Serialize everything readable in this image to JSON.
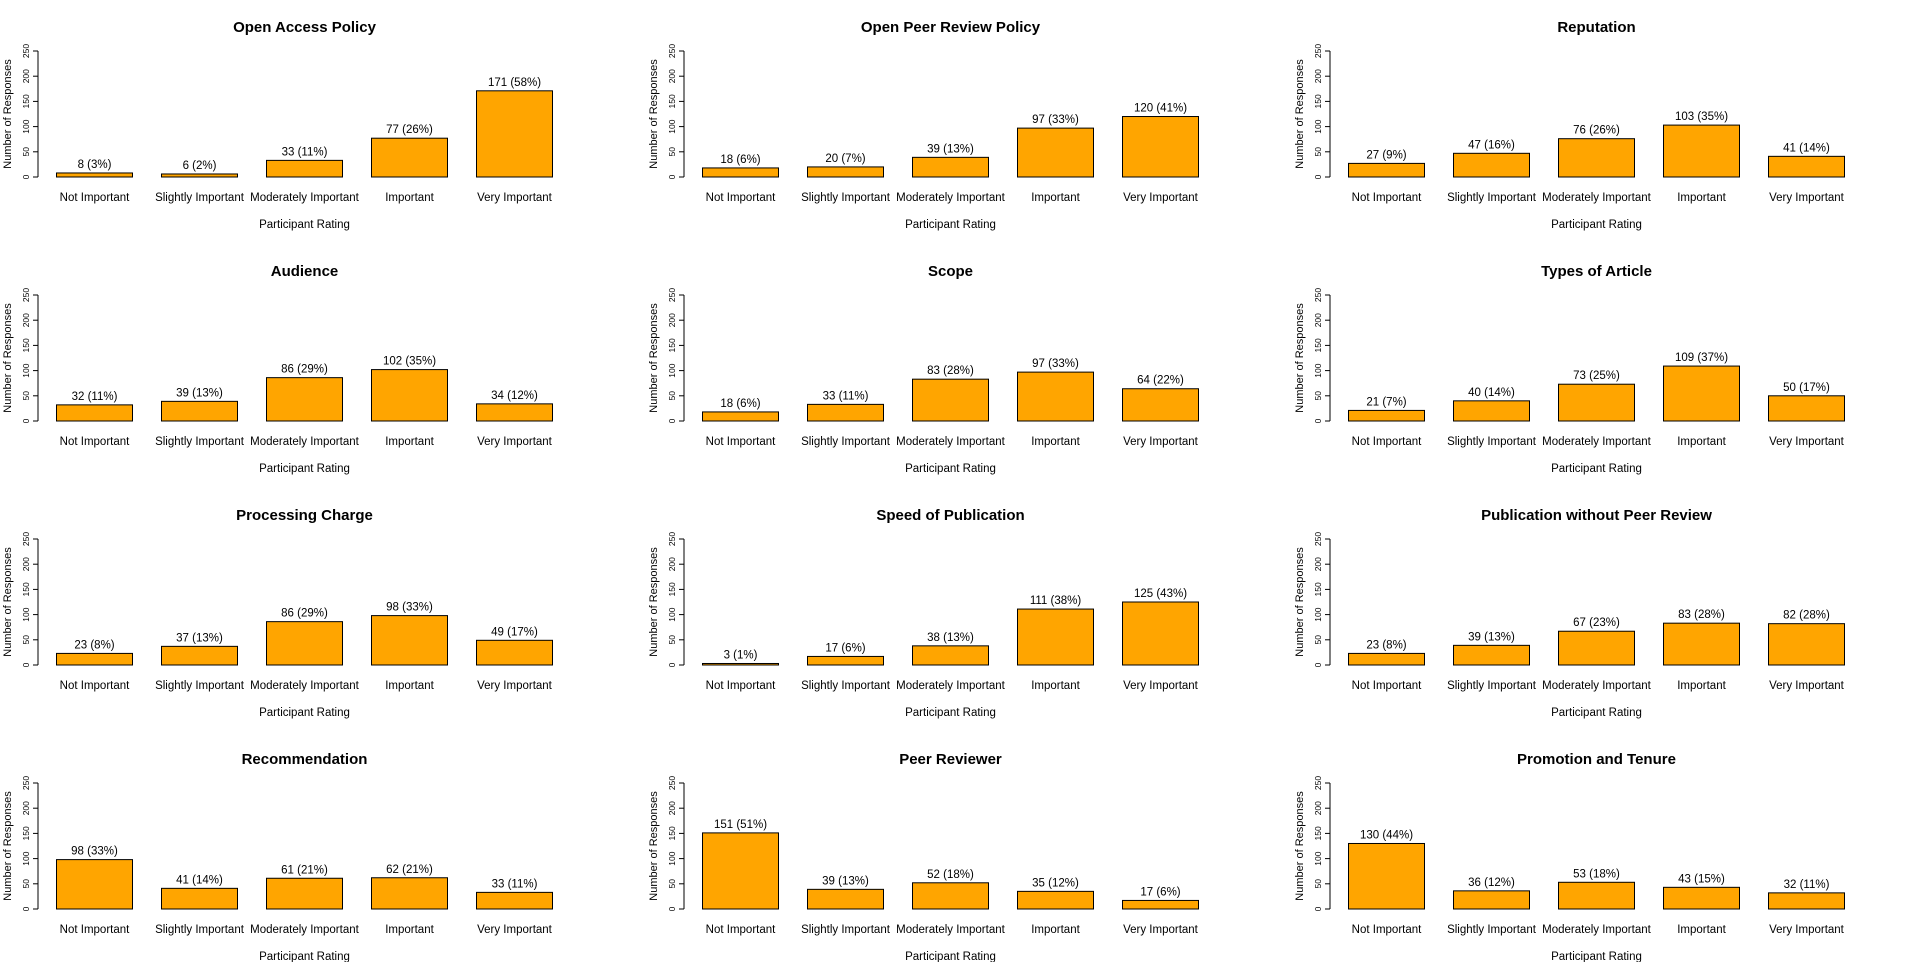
{
  "bar_color": "#FFA500",
  "chart_data": [
    {
      "type": "bar",
      "title": "Open Access Policy",
      "categories": [
        "Not Important",
        "Slightly Important",
        "Moderately Important",
        "Important",
        "Very Important"
      ],
      "values": [
        8,
        6,
        33,
        77,
        171
      ],
      "data_labels": [
        "8 (3%)",
        "6 (2%)",
        "33 (11%)",
        "77 (26%)",
        "171 (58%)"
      ],
      "xlabel": "Participant Rating",
      "ylabel": "Number of Responses",
      "ylim": [
        0,
        250
      ],
      "yticks": [
        "0",
        "50",
        "100",
        "150",
        "200",
        "250"
      ]
    },
    {
      "type": "bar",
      "title": "Open Peer Review Policy",
      "categories": [
        "Not Important",
        "Slightly Important",
        "Moderately Important",
        "Important",
        "Very Important"
      ],
      "values": [
        18,
        20,
        39,
        97,
        120
      ],
      "data_labels": [
        "18 (6%)",
        "20 (7%)",
        "39 (13%)",
        "97 (33%)",
        "120 (41%)"
      ],
      "xlabel": "Participant Rating",
      "ylabel": "Number of Responses",
      "ylim": [
        0,
        250
      ],
      "yticks": [
        "0",
        "50",
        "100",
        "150",
        "200",
        "250"
      ]
    },
    {
      "type": "bar",
      "title": "Reputation",
      "categories": [
        "Not Important",
        "Slightly Important",
        "Moderately Important",
        "Important",
        "Very Important"
      ],
      "values": [
        27,
        47,
        76,
        103,
        41
      ],
      "data_labels": [
        "27 (9%)",
        "47 (16%)",
        "76 (26%)",
        "103 (35%)",
        "41 (14%)"
      ],
      "xlabel": "Participant Rating",
      "ylabel": "Number of Responses",
      "ylim": [
        0,
        250
      ],
      "yticks": [
        "0",
        "50",
        "100",
        "150",
        "200",
        "250"
      ]
    },
    {
      "type": "bar",
      "title": "Audience",
      "categories": [
        "Not Important",
        "Slightly Important",
        "Moderately Important",
        "Important",
        "Very Important"
      ],
      "values": [
        32,
        39,
        86,
        102,
        34
      ],
      "data_labels": [
        "32 (11%)",
        "39 (13%)",
        "86 (29%)",
        "102 (35%)",
        "34 (12%)"
      ],
      "xlabel": "Participant Rating",
      "ylabel": "Number of Responses",
      "ylim": [
        0,
        250
      ],
      "yticks": [
        "0",
        "50",
        "100",
        "150",
        "200",
        "250"
      ]
    },
    {
      "type": "bar",
      "title": "Scope",
      "categories": [
        "Not Important",
        "Slightly Important",
        "Moderately Important",
        "Important",
        "Very Important"
      ],
      "values": [
        18,
        33,
        83,
        97,
        64
      ],
      "data_labels": [
        "18 (6%)",
        "33 (11%)",
        "83 (28%)",
        "97 (33%)",
        "64 (22%)"
      ],
      "xlabel": "Participant Rating",
      "ylabel": "Number of Responses",
      "ylim": [
        0,
        250
      ],
      "yticks": [
        "0",
        "50",
        "100",
        "150",
        "200",
        "250"
      ]
    },
    {
      "type": "bar",
      "title": "Types of Article",
      "categories": [
        "Not Important",
        "Slightly Important",
        "Moderately Important",
        "Important",
        "Very Important"
      ],
      "values": [
        21,
        40,
        73,
        109,
        50
      ],
      "data_labels": [
        "21 (7%)",
        "40 (14%)",
        "73 (25%)",
        "109 (37%)",
        "50 (17%)"
      ],
      "xlabel": "Participant Rating",
      "ylabel": "Number of Responses",
      "ylim": [
        0,
        250
      ],
      "yticks": [
        "0",
        "50",
        "100",
        "150",
        "200",
        "250"
      ]
    },
    {
      "type": "bar",
      "title": "Processing Charge",
      "categories": [
        "Not Important",
        "Slightly Important",
        "Moderately Important",
        "Important",
        "Very Important"
      ],
      "values": [
        23,
        37,
        86,
        98,
        49
      ],
      "data_labels": [
        "23 (8%)",
        "37 (13%)",
        "86 (29%)",
        "98 (33%)",
        "49 (17%)"
      ],
      "xlabel": "Participant Rating",
      "ylabel": "Number of Responses",
      "ylim": [
        0,
        250
      ],
      "yticks": [
        "0",
        "50",
        "100",
        "150",
        "200",
        "250"
      ]
    },
    {
      "type": "bar",
      "title": "Speed of Publication",
      "categories": [
        "Not Important",
        "Slightly Important",
        "Moderately Important",
        "Important",
        "Very Important"
      ],
      "values": [
        3,
        17,
        38,
        111,
        125
      ],
      "data_labels": [
        "3 (1%)",
        "17 (6%)",
        "38 (13%)",
        "111 (38%)",
        "125 (43%)"
      ],
      "xlabel": "Participant Rating",
      "ylabel": "Number of Responses",
      "ylim": [
        0,
        250
      ],
      "yticks": [
        "0",
        "50",
        "100",
        "150",
        "200",
        "250"
      ]
    },
    {
      "type": "bar",
      "title": "Publication without Peer Review",
      "categories": [
        "Not Important",
        "Slightly Important",
        "Moderately Important",
        "Important",
        "Very Important"
      ],
      "values": [
        23,
        39,
        67,
        83,
        82
      ],
      "data_labels": [
        "23 (8%)",
        "39 (13%)",
        "67 (23%)",
        "83 (28%)",
        "82 (28%)"
      ],
      "xlabel": "Participant Rating",
      "ylabel": "Number of Responses",
      "ylim": [
        0,
        250
      ],
      "yticks": [
        "0",
        "50",
        "100",
        "150",
        "200",
        "250"
      ]
    },
    {
      "type": "bar",
      "title": "Recommendation",
      "categories": [
        "Not Important",
        "Slightly Important",
        "Moderately Important",
        "Important",
        "Very Important"
      ],
      "values": [
        98,
        41,
        61,
        62,
        33
      ],
      "data_labels": [
        "98 (33%)",
        "41 (14%)",
        "61 (21%)",
        "62 (21%)",
        "33 (11%)"
      ],
      "xlabel": "Participant Rating",
      "ylabel": "Number of Responses",
      "ylim": [
        0,
        250
      ],
      "yticks": [
        "0",
        "50",
        "100",
        "150",
        "200",
        "250"
      ]
    },
    {
      "type": "bar",
      "title": "Peer Reviewer",
      "categories": [
        "Not Important",
        "Slightly Important",
        "Moderately Important",
        "Important",
        "Very Important"
      ],
      "values": [
        151,
        39,
        52,
        35,
        17
      ],
      "data_labels": [
        "151 (51%)",
        "39 (13%)",
        "52 (18%)",
        "35 (12%)",
        "17 (6%)"
      ],
      "xlabel": "Participant Rating",
      "ylabel": "Number of Responses",
      "ylim": [
        0,
        250
      ],
      "yticks": [
        "0",
        "50",
        "100",
        "150",
        "200",
        "250"
      ]
    },
    {
      "type": "bar",
      "title": "Promotion and Tenure",
      "categories": [
        "Not Important",
        "Slightly Important",
        "Moderately Important",
        "Important",
        "Very Important"
      ],
      "values": [
        130,
        36,
        53,
        43,
        32
      ],
      "data_labels": [
        "130 (44%)",
        "36 (12%)",
        "53 (18%)",
        "43 (15%)",
        "32 (11%)"
      ],
      "xlabel": "Participant Rating",
      "ylabel": "Number of Responses",
      "ylim": [
        0,
        250
      ],
      "yticks": [
        "0",
        "50",
        "100",
        "150",
        "200",
        "250"
      ]
    }
  ]
}
